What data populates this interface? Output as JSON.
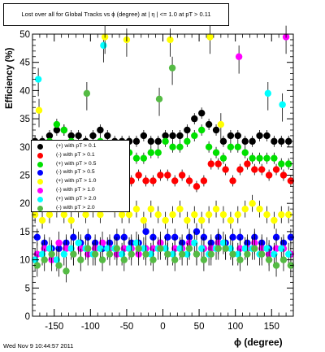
{
  "chart_data": {
    "type": "scatter",
    "title": "Lost over all for Global Tracks vs ϕ (degree) at | η | <= 1.0 at pT > 0.11",
    "xlabel": "ϕ (degree)",
    "ylabel": "Efficiency (%)",
    "xlim": [
      -180,
      180
    ],
    "ylim": [
      0,
      50
    ],
    "x_ticks": [
      -150,
      -100,
      -50,
      0,
      50,
      100,
      150
    ],
    "y_ticks": [
      0,
      5,
      10,
      15,
      20,
      25,
      30,
      35,
      40,
      45,
      50
    ],
    "x_tick_labels": [
      "-150",
      "-100",
      "-50",
      "0",
      "50",
      "100",
      "150"
    ],
    "y_tick_labels": [
      "0",
      "5",
      "10",
      "15",
      "20",
      "25",
      "30",
      "35",
      "40",
      "45",
      "50"
    ],
    "grid": false,
    "legend_position": "center-left",
    "x": [
      -175,
      -165,
      -155,
      -145,
      -135,
      -125,
      -115,
      -105,
      -95,
      -85,
      -75,
      -65,
      -55,
      -45,
      -35,
      -25,
      -15,
      -5,
      5,
      15,
      25,
      35,
      45,
      55,
      65,
      75,
      85,
      95,
      105,
      115,
      125,
      135,
      145,
      155,
      165,
      175
    ],
    "series": [
      {
        "name": "(+) with pT > 0.1",
        "color": "#000000",
        "values": [
          31,
          31,
          32,
          33,
          33,
          32,
          32,
          31,
          32,
          33,
          32,
          31,
          31,
          31,
          31,
          32,
          31,
          31,
          32,
          32,
          32,
          33,
          35,
          36,
          34,
          33,
          31,
          32,
          32,
          31,
          31,
          32,
          32,
          31,
          31,
          31
        ],
        "errors": [
          1,
          1,
          1,
          1,
          1,
          1,
          1,
          1,
          1,
          1,
          1,
          1,
          1,
          1,
          1,
          1,
          1,
          1,
          1,
          1,
          1,
          1,
          1,
          1,
          1,
          1,
          1,
          1,
          1,
          1,
          1,
          1,
          1,
          1,
          1,
          1
        ]
      },
      {
        "name": "(-) with pT > 0.1",
        "color": "#ff0000",
        "values": [
          27,
          26,
          27,
          25,
          27,
          26,
          25,
          26,
          25,
          25,
          26,
          25,
          24,
          24,
          25,
          24,
          24,
          25,
          25,
          24,
          25,
          24,
          23,
          24,
          27,
          27,
          26,
          24,
          26,
          27,
          26,
          26,
          25,
          26,
          25,
          24
        ],
        "errors": [
          1,
          1,
          1,
          1,
          1,
          1,
          1,
          1,
          1,
          1,
          1,
          1,
          1,
          1,
          1,
          1,
          1,
          1,
          1,
          1,
          1,
          1,
          1,
          1,
          1,
          1,
          1,
          1,
          1,
          1,
          1,
          1,
          1,
          1,
          1,
          1
        ]
      },
      {
        "name": "(+) with pT > 0.5",
        "color": "#00e000",
        "values": [
          30,
          29,
          31,
          34,
          33,
          31,
          30,
          29,
          30,
          31,
          29,
          28,
          29,
          29,
          28,
          28,
          29,
          29,
          31,
          30,
          30,
          31,
          32,
          33,
          30,
          29,
          28,
          30,
          30,
          29,
          28,
          28,
          28,
          28,
          27,
          27
        ],
        "errors": [
          1,
          1,
          1,
          1,
          1,
          1,
          1,
          1,
          1,
          1,
          1,
          1,
          1,
          1,
          1,
          1,
          1,
          1,
          1,
          1,
          1,
          1,
          1,
          1,
          1,
          1,
          1,
          1,
          1,
          1,
          1,
          1,
          1,
          1,
          1,
          1
        ]
      },
      {
        "name": "(-) with pT > 0.5",
        "color": "#0000ff",
        "values": [
          14,
          13,
          12,
          12,
          13,
          14,
          13,
          14,
          13,
          12,
          13,
          14,
          14,
          13,
          13,
          15,
          14,
          13,
          14,
          14,
          13,
          14,
          15,
          14,
          13,
          14,
          13,
          14,
          14,
          13,
          14,
          13,
          12,
          14,
          13,
          14
        ],
        "errors": [
          1.5,
          1.5,
          1.5,
          1.5,
          1.5,
          1.5,
          1.5,
          1.5,
          1.5,
          1.5,
          1.5,
          1.5,
          1.5,
          1.5,
          1.5,
          1.5,
          1.5,
          1.5,
          1.5,
          1.5,
          1.5,
          1.5,
          1.5,
          1.5,
          1.5,
          1.5,
          1.5,
          1.5,
          1.5,
          1.5,
          1.5,
          1.5,
          1.5,
          1.5,
          1.5,
          1.5
        ]
      },
      {
        "name": "(+) with pT > 1.0",
        "color": "#ffff00",
        "values": [
          18,
          17,
          18,
          19,
          18,
          17,
          19,
          18,
          19,
          18,
          20,
          19,
          18,
          18,
          19,
          17,
          19,
          18,
          17,
          18,
          19,
          17,
          18,
          17,
          18,
          19,
          18,
          17,
          18,
          19,
          20,
          19,
          18,
          17,
          18,
          18
        ],
        "errors": [
          1.5,
          1.5,
          1.5,
          1.5,
          1.5,
          1.5,
          1.5,
          1.5,
          1.5,
          1.5,
          1.5,
          1.5,
          1.5,
          1.5,
          1.5,
          1.5,
          1.5,
          1.5,
          1.5,
          1.5,
          1.5,
          1.5,
          1.5,
          1.5,
          1.5,
          1.5,
          1.5,
          1.5,
          1.5,
          1.5,
          1.5,
          1.5,
          1.5,
          1.5,
          1.5,
          1.5
        ]
      },
      {
        "name": "(-) with pT > 1.0",
        "color": "#ff00ff",
        "values": [
          11,
          12,
          10,
          13,
          12,
          11,
          12,
          11,
          12,
          13,
          12,
          11,
          12,
          12,
          11,
          12,
          12,
          13,
          11,
          12,
          12,
          13,
          11,
          12,
          12,
          13,
          12,
          11,
          12,
          12,
          13,
          12,
          11,
          12,
          12,
          11
        ],
        "errors": [
          2,
          2,
          2,
          2,
          2,
          2,
          2,
          2,
          2,
          2,
          2,
          2,
          2,
          2,
          2,
          2,
          2,
          2,
          2,
          2,
          2,
          2,
          2,
          2,
          2,
          2,
          2,
          2,
          2,
          2,
          2,
          2,
          2,
          2,
          2,
          2
        ]
      },
      {
        "name": "(+) with pT > 2.0",
        "color": "#00ffff",
        "values": [
          10,
          11,
          12,
          10,
          11,
          12,
          13,
          12,
          11,
          12,
          12,
          12,
          11,
          12,
          13,
          12,
          11,
          12,
          12,
          11,
          12,
          11,
          13,
          12,
          11,
          12,
          13,
          12,
          11,
          12,
          12,
          11,
          12,
          11,
          12,
          11
        ],
        "errors": [
          2,
          2,
          2,
          2,
          2,
          2,
          2,
          2,
          2,
          2,
          2,
          2,
          2,
          2,
          2,
          2,
          2,
          2,
          2,
          2,
          2,
          2,
          2,
          2,
          2,
          2,
          2,
          2,
          2,
          2,
          2,
          2,
          2,
          2,
          2,
          2
        ]
      },
      {
        "name": "(-) with pT > 2.0",
        "color": "#55bb44",
        "values": [
          9,
          10,
          11,
          9,
          8,
          11,
          10,
          12,
          11,
          10,
          11,
          12,
          10,
          11,
          12,
          11,
          10,
          12,
          11,
          10,
          11,
          12,
          11,
          10,
          11,
          12,
          12,
          11,
          10,
          11,
          12,
          11,
          10,
          9,
          10,
          9
        ],
        "errors": [
          2,
          2,
          2,
          2,
          2,
          2,
          2,
          2,
          2,
          2,
          2,
          2,
          2,
          2,
          2,
          2,
          2,
          2,
          2,
          2,
          2,
          2,
          2,
          2,
          2,
          2,
          2,
          2,
          2,
          2,
          2,
          2,
          2,
          2,
          2,
          2
        ]
      }
    ],
    "outliers": [
      {
        "x": -172,
        "y": 42,
        "color": "#00ffff"
      },
      {
        "x": -82,
        "y": 48,
        "color": "#00ffff"
      },
      {
        "x": -80,
        "y": 49.5,
        "color": "#ffff00"
      },
      {
        "x": -50,
        "y": 49,
        "color": "#ffff00"
      },
      {
        "x": 10,
        "y": 49,
        "color": "#ffff00"
      },
      {
        "x": 13,
        "y": 44,
        "color": "#55bb44"
      },
      {
        "x": 65,
        "y": 49.5,
        "color": "#ffff00"
      },
      {
        "x": 105,
        "y": 46,
        "color": "#ff00ff"
      },
      {
        "x": 170,
        "y": 49.5,
        "color": "#ff00ff"
      },
      {
        "x": -105,
        "y": 39.5,
        "color": "#55bb44"
      },
      {
        "x": -5,
        "y": 38.5,
        "color": "#55bb44"
      },
      {
        "x": 165,
        "y": 37.5,
        "color": "#00ffff"
      },
      {
        "x": 145,
        "y": 39.5,
        "color": "#00ffff"
      },
      {
        "x": -171,
        "y": 36.5,
        "color": "#ffff00"
      },
      {
        "x": 80,
        "y": 34,
        "color": "#ffff00"
      }
    ]
  },
  "footer": {
    "timestamp": "Wed Nov  9 10:44:57 2011"
  }
}
